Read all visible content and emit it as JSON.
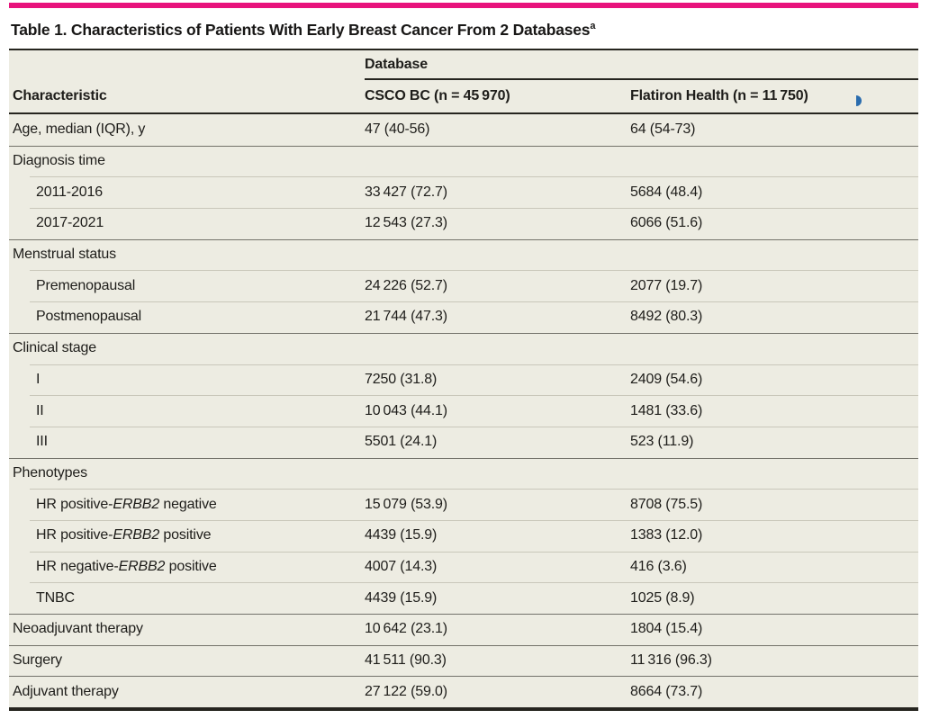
{
  "accent_color": "#e8137c",
  "title": {
    "text": "Table 1. Characteristics of Patients With Early Breast Cancer From 2 Databases",
    "footnote_marker": "a"
  },
  "table": {
    "spanner_header": "Database",
    "columns": {
      "characteristic": "Characteristic",
      "csco": "CSCO BC (n = 45 970)",
      "flatiron": "Flatiron Health (n = 11 750)"
    },
    "rows": [
      {
        "label": "Age, median (IQR), y",
        "indent": false,
        "csco": "47 (40-56)",
        "flatiron": "64 (54-73)"
      },
      {
        "label": "Diagnosis time",
        "indent": false,
        "csco": "",
        "flatiron": ""
      },
      {
        "label": "2011-2016",
        "indent": true,
        "csco": "33 427 (72.7)",
        "flatiron": "5684 (48.4)"
      },
      {
        "label": "2017-2021",
        "indent": true,
        "csco": "12 543 (27.3)",
        "flatiron": "6066 (51.6)"
      },
      {
        "label": "Menstrual status",
        "indent": false,
        "csco": "",
        "flatiron": ""
      },
      {
        "label": "Premenopausal",
        "indent": true,
        "csco": "24 226 (52.7)",
        "flatiron": "2077 (19.7)"
      },
      {
        "label": "Postmenopausal",
        "indent": true,
        "csco": "21 744 (47.3)",
        "flatiron": "8492 (80.3)"
      },
      {
        "label": "Clinical stage",
        "indent": false,
        "csco": "",
        "flatiron": ""
      },
      {
        "label": "I",
        "indent": true,
        "csco": "7250 (31.8)",
        "flatiron": "2409 (54.6)"
      },
      {
        "label": "II",
        "indent": true,
        "csco": "10 043 (44.1)",
        "flatiron": "1481 (33.6)"
      },
      {
        "label": "III",
        "indent": true,
        "csco": "5501 (24.1)",
        "flatiron": "523 (11.9)"
      },
      {
        "label": "Phenotypes",
        "indent": false,
        "csco": "",
        "flatiron": ""
      },
      {
        "label": "HR positive-*ERBB2* negative",
        "indent": true,
        "csco": "15 079 (53.9)",
        "flatiron": "8708 (75.5)"
      },
      {
        "label": "HR positive-*ERBB2* positive",
        "indent": true,
        "csco": "4439 (15.9)",
        "flatiron": "1383 (12.0)"
      },
      {
        "label": "HR negative-*ERBB2* positive",
        "indent": true,
        "csco": "4007 (14.3)",
        "flatiron": "416 (3.6)"
      },
      {
        "label": "TNBC",
        "indent": true,
        "csco": "4439 (15.9)",
        "flatiron": "1025 (8.9)"
      },
      {
        "label": "Neoadjuvant therapy",
        "indent": false,
        "csco": "10 642 (23.1)",
        "flatiron": "1804 (15.4)"
      },
      {
        "label": "Surgery",
        "indent": false,
        "csco": "41 511 (90.3)",
        "flatiron": "11 316 (96.3)"
      },
      {
        "label": "Adjuvant therapy",
        "indent": false,
        "csco": "27 122 (59.0)",
        "flatiron": "8664 (73.7)"
      }
    ]
  }
}
